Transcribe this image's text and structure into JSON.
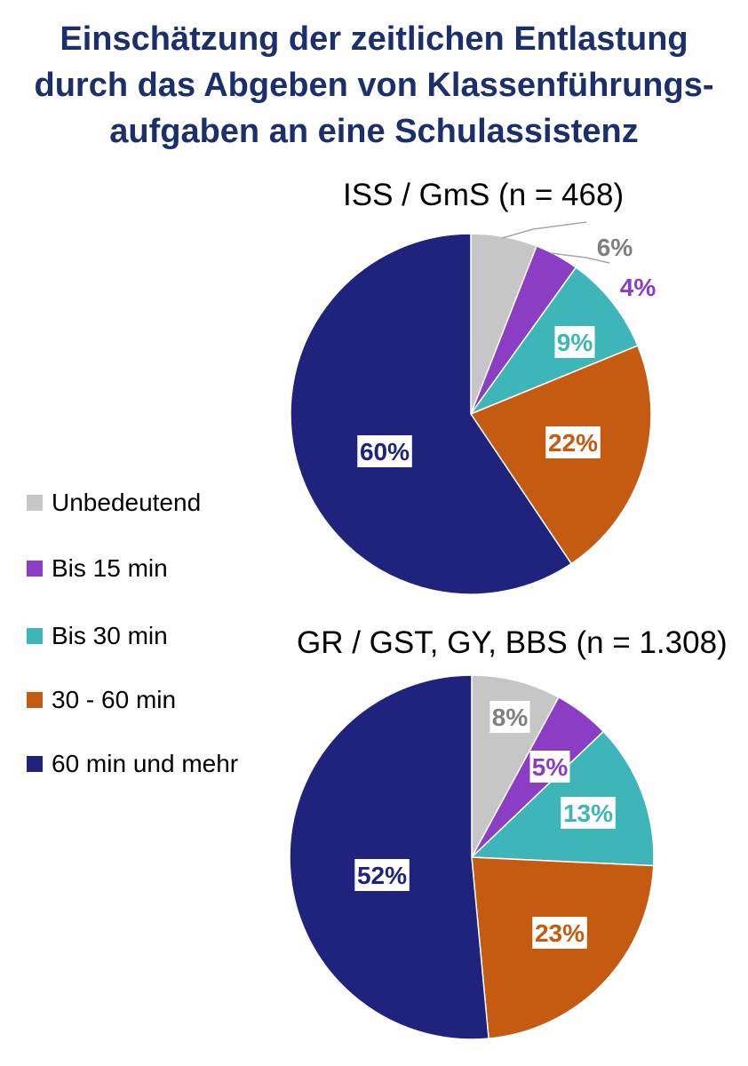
{
  "title": {
    "line1": "Einschätzung der zeitlichen Entlastung",
    "line2": "durch das Abgeben von Klassenführungs-",
    "line3": "aufgaben an eine Schulassistenz"
  },
  "colors": {
    "Unbedeutend": "#c6c6c6",
    "Bis 15 min": "#8b3dc4",
    "Bis 30 min": "#3db5b9",
    "30 - 60 min": "#c55a11",
    "60 min und mehr": "#1f237e",
    "title": "#1b2f6b"
  },
  "legend": [
    {
      "label": "Unbedeutend",
      "color": "#c6c6c6"
    },
    {
      "label": "Bis 15 min",
      "color": "#8b3dc4"
    },
    {
      "label": "Bis 30 min",
      "color": "#3db5b9"
    },
    {
      "label": "30 - 60 min",
      "color": "#c55a11"
    },
    {
      "label": "60 min und mehr",
      "color": "#1f237e"
    }
  ],
  "chart_data": [
    {
      "type": "pie",
      "title": "ISS / GmS (n = 468)",
      "categories": [
        "Unbedeutend",
        "Bis 15 min",
        "Bis 30 min",
        "30 - 60 min",
        "60 min und mehr"
      ],
      "values": [
        6,
        4,
        9,
        22,
        60
      ],
      "labels": [
        "6%",
        "4%",
        "9%",
        "22%",
        "60%"
      ],
      "legend_position": "left"
    },
    {
      "type": "pie",
      "title": "GR / GST, GY, BBS (n = 1.308)",
      "categories": [
        "Unbedeutend",
        "Bis 15 min",
        "Bis 30 min",
        "30 - 60 min",
        "60 min und mehr"
      ],
      "values": [
        8,
        5,
        13,
        23,
        52
      ],
      "labels": [
        "8%",
        "5%",
        "13%",
        "23%",
        "52%"
      ],
      "legend_position": "left"
    }
  ]
}
